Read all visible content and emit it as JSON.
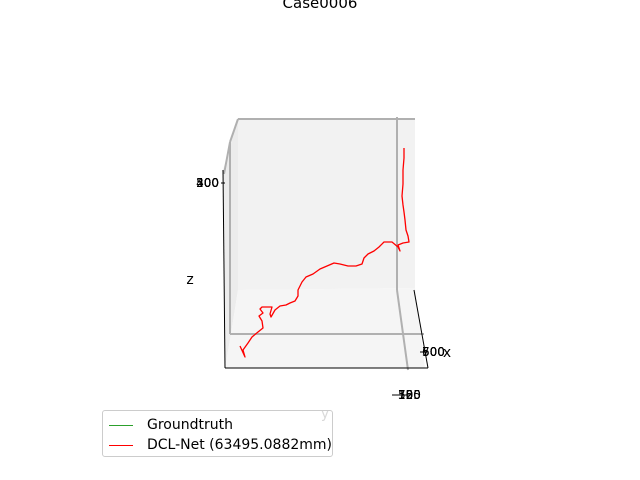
{
  "chart_data": {
    "type": "line",
    "title": "Case0006",
    "xlabel": "x",
    "ylabel": "y",
    "zlabel": "z",
    "z_tick_labels": [
      "500",
      "400",
      "300",
      "200"
    ],
    "x_tick_labels": [
      "700",
      "600",
      "500"
    ],
    "y_tick_labels": [
      "150",
      "125",
      "100",
      "75",
      "50"
    ],
    "series": [
      {
        "name": "Groundtruth",
        "color": "#2ca02c",
        "points": []
      },
      {
        "name": "DCL-Net (63495.0882mm)",
        "color": "#ff0000",
        "points": [
          [
            240,
            346
          ],
          [
            245,
            357
          ],
          [
            243,
            350
          ],
          [
            248,
            343
          ],
          [
            252,
            337
          ],
          [
            258,
            332
          ],
          [
            263,
            328
          ],
          [
            262,
            321
          ],
          [
            259,
            316
          ],
          [
            263,
            313
          ],
          [
            260,
            309
          ],
          [
            262,
            307
          ],
          [
            264,
            307
          ],
          [
            272,
            307
          ],
          [
            270,
            314
          ],
          [
            271,
            317
          ],
          [
            275,
            310
          ],
          [
            280,
            306
          ],
          [
            286,
            305
          ],
          [
            290,
            303
          ],
          [
            295,
            301
          ],
          [
            298,
            296
          ],
          [
            298,
            290
          ],
          [
            302,
            282
          ],
          [
            306,
            277
          ],
          [
            313,
            274
          ],
          [
            320,
            269
          ],
          [
            327,
            266
          ],
          [
            334,
            263
          ],
          [
            340,
            264
          ],
          [
            348,
            266
          ],
          [
            356,
            266
          ],
          [
            362,
            264
          ],
          [
            364,
            258
          ],
          [
            368,
            254
          ],
          [
            374,
            251
          ],
          [
            379,
            247
          ],
          [
            384,
            242
          ],
          [
            392,
            242
          ],
          [
            398,
            247
          ],
          [
            400,
            251
          ],
          [
            398,
            245
          ],
          [
            403,
            243
          ],
          [
            409,
            242
          ],
          [
            408,
            236
          ],
          [
            406,
            230
          ],
          [
            405,
            220
          ],
          [
            404,
            212
          ],
          [
            403,
            205
          ],
          [
            402,
            196
          ],
          [
            403,
            184
          ],
          [
            403,
            170
          ],
          [
            404,
            158
          ],
          [
            404,
            148
          ]
        ]
      }
    ],
    "grid": false,
    "legend_position": "lower-left"
  }
}
